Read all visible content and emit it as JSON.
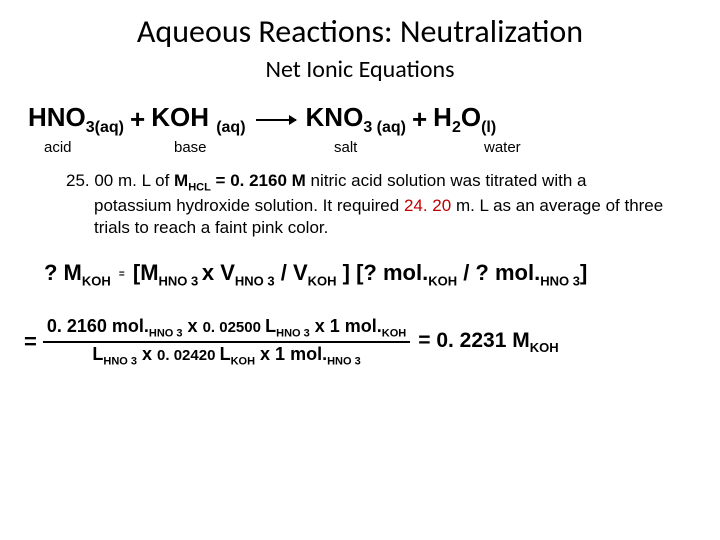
{
  "title": "Aqueous Reactions: Neutralization",
  "subtitle": "Net Ionic Equations",
  "equation": {
    "reactant1": "HNO",
    "reactant1_sub": "3(aq)",
    "plus1": " + ",
    "reactant2": "KOH ",
    "reactant2_sub": "(aq)",
    "product1": "KNO",
    "product1_sub": "3 (aq)",
    "plus2": " + ",
    "product2": "H",
    "product2_sub1": "2",
    "product2b": "O",
    "product2_sub2": "(l)"
  },
  "labels": {
    "acid": "acid",
    "base": "base",
    "salt": "salt",
    "water": "water"
  },
  "problem": {
    "p1": "25. 00 m. L of ",
    "p2": "M",
    "p2sub": "HCL",
    "p3": " = 0. 2160 ",
    "p4": "M",
    "p5": " nitric acid solution was titrated with a potassium hydroxide solution. It required ",
    "p6": "24. 20",
    "p7": " m. L as an average of three trials to reach a faint pink color."
  },
  "formula1": {
    "q": "? M",
    "qsub": "KOH",
    "eq": "=",
    "body1": "[M",
    "sub1": "HNO 3 ",
    "body2": "x  V",
    "sub2": "HNO 3",
    "body3": " / V",
    "sub3": "KOH",
    "body4": " ] [? mol.",
    "sub4": "KOH",
    "body5": " / ? mol.",
    "sub5": "HNO 3",
    "body6": "]"
  },
  "formula2": {
    "num1": "0. 2160 mol.",
    "numsub1": "HNO 3",
    "num2": " x ",
    "num3": "0. 02500 ",
    "num4": "L",
    "numsub2": "HNO 3",
    "num5": " x 1 mol.",
    "numsub3": "KOH",
    "den1": "L",
    "densub1": "HNO 3",
    "den2": " x ",
    "den3": "0. 02420 ",
    "den4": "L",
    "densub2": "KOH",
    "den5": " x  1 mol.",
    "densub3": "HNO 3",
    "result": " =  0. 2231 M",
    "resultsub": "KOH"
  }
}
